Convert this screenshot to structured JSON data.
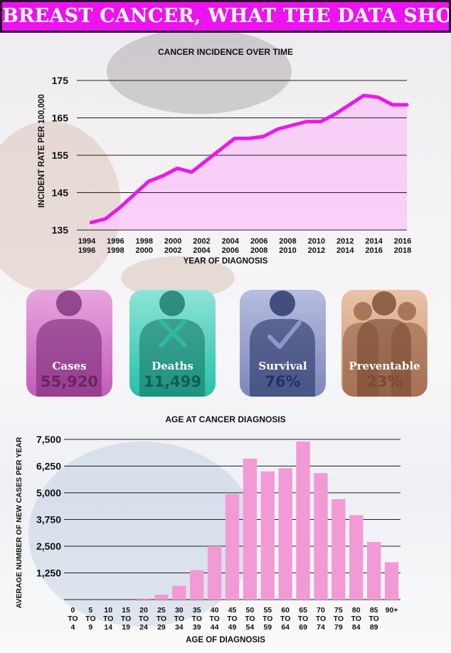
{
  "headline": "BREAST CANCER, WHAT THE DATA SHOWS",
  "colors": {
    "banner": "#ec13ee",
    "line": "#e91ae8",
    "area": "#f9c9f7",
    "bar": "#f29ad6",
    "cases": "#c45bb9",
    "deaths": "#27bfa9",
    "survival": "#7d87b9",
    "preventable": "#c58f6f"
  },
  "stats": [
    {
      "label": "Cases",
      "value": "55,920",
      "icon": "person-silhouette-icon"
    },
    {
      "label": "Deaths",
      "value": "11,499",
      "icon": "person-cross-icon"
    },
    {
      "label": "Survival",
      "value": "76%",
      "icon": "person-check-icon"
    },
    {
      "label": "Preventable",
      "value": "23%",
      "icon": "group-silhouette-icon"
    }
  ],
  "chart_data": [
    {
      "type": "area",
      "title": "CANCER INCIDENCE OVER TIME",
      "xlabel": "YEAR OF DIAGNOSIS",
      "ylabel": "INCIDENT RATE PER 100,000",
      "ylim": [
        135,
        175
      ],
      "yticks": [
        "135",
        "145",
        "155",
        "165",
        "175"
      ],
      "xtick_top": [
        "1994",
        "1996",
        "1998",
        "2000",
        "2002",
        "2004",
        "2006",
        "2008",
        "2010",
        "2012",
        "2014",
        "2016"
      ],
      "xtick_bottom": [
        "1996",
        "1998",
        "2000",
        "2002",
        "2004",
        "2006",
        "2008",
        "2010",
        "2012",
        "2014",
        "2016",
        "2018"
      ],
      "x": [
        1995,
        1996,
        1997,
        1998,
        1999,
        2000,
        2001,
        2002,
        2003,
        2004,
        2005,
        2006,
        2007,
        2008,
        2009,
        2010,
        2011,
        2012,
        2013,
        2014,
        2015,
        2016,
        2017
      ],
      "values": [
        137,
        138,
        141,
        144.5,
        148,
        149.5,
        151.5,
        150.5,
        153.5,
        156.5,
        159.5,
        159.5,
        160,
        162,
        163,
        164,
        164,
        166,
        168.5,
        171,
        170.5,
        168.5,
        168.5
      ],
      "grid": true
    },
    {
      "type": "bar",
      "title": "AGE AT CANCER DIAGNOSIS",
      "xlabel": "AGE OF DIAGNOSIS",
      "ylabel": "AVERAGE NUMBER OF NEW CASES PER YEAR",
      "ylim": [
        0,
        7500
      ],
      "yticks": [
        "1,250",
        "2,500",
        "3,750",
        "5,000",
        "6,250",
        "7,500"
      ],
      "categories": [
        [
          "0",
          "TO",
          "4"
        ],
        [
          "5",
          "TO",
          "9"
        ],
        [
          "10",
          "TO",
          "14"
        ],
        [
          "15",
          "TO",
          "19"
        ],
        [
          "20",
          "TO",
          "24"
        ],
        [
          "25",
          "TO",
          "29"
        ],
        [
          "30",
          "TO",
          "34"
        ],
        [
          "35",
          "TO",
          "39"
        ],
        [
          "40",
          "TO",
          "44"
        ],
        [
          "45",
          "TO",
          "49"
        ],
        [
          "50",
          "TO",
          "54"
        ],
        [
          "55",
          "TO",
          "59"
        ],
        [
          "60",
          "TO",
          "64"
        ],
        [
          "65",
          "TO",
          "69"
        ],
        [
          "70",
          "TO",
          "74"
        ],
        [
          "75",
          "TO",
          "79"
        ],
        [
          "80",
          "TO",
          "84"
        ],
        [
          "85",
          "TO",
          "89"
        ],
        [
          "90+",
          "",
          ""
        ]
      ],
      "values": [
        0,
        0,
        0,
        0,
        50,
        230,
        650,
        1380,
        2500,
        4930,
        6600,
        6000,
        6150,
        7400,
        5920,
        4700,
        3950,
        2700,
        1750
      ],
      "grid": true
    }
  ]
}
